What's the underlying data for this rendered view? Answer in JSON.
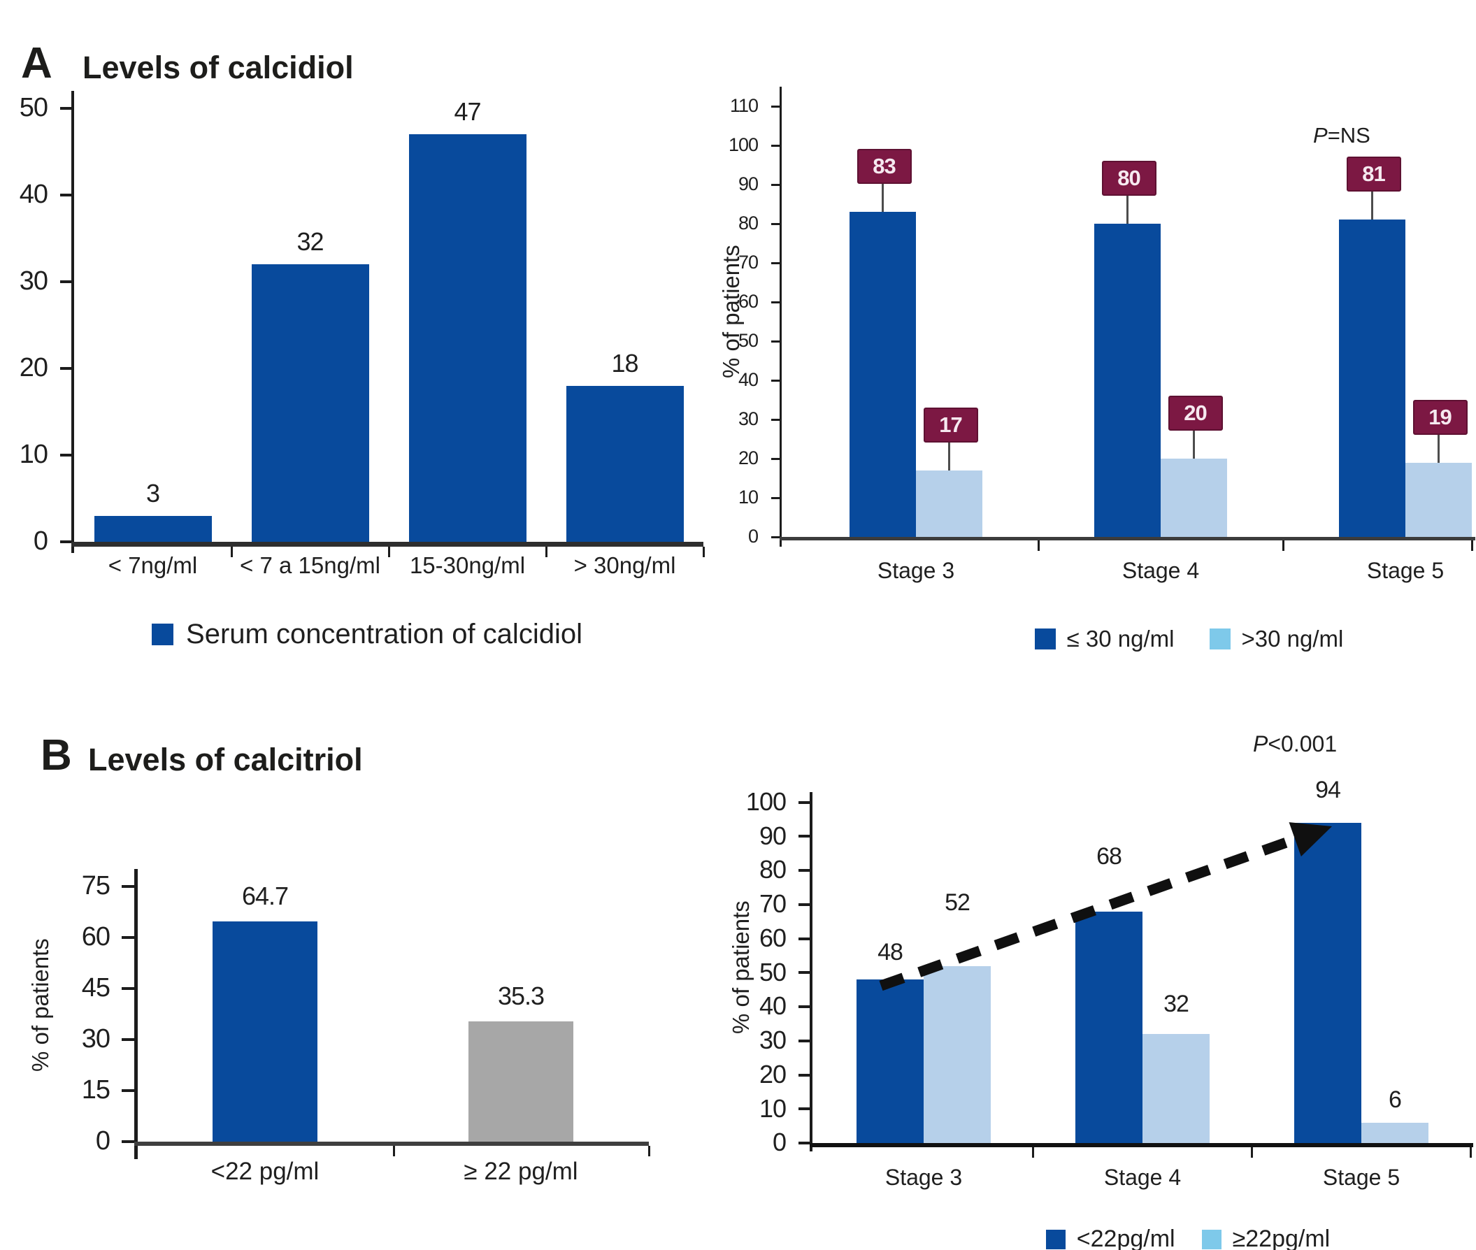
{
  "panels": {
    "a": {
      "letter": "A",
      "title": "Levels of calcidiol"
    },
    "b": {
      "letter": "B",
      "title": "Levels of calcitriol"
    }
  },
  "colors": {
    "dark_blue": "#084a9c",
    "light_blue": "#b6d0ea",
    "sky_blue": "#7ec9ea",
    "gray": "#a7a7a7",
    "maroon": "#7c1843",
    "maroon_border": "#5e1132",
    "maroon_text": "#f6e9f0",
    "axis": "#1c1c1c",
    "text": "#1f1f1f",
    "stem": "#4d4d4d",
    "arrow": "#101010"
  },
  "chart_data": [
    {
      "id": "calcidiol-distribution",
      "panel": "A",
      "type": "bar",
      "title": "Levels of calcidiol",
      "categories": [
        "< 7ng/ml",
        "< 7 a 15ng/ml",
        "15-30ng/ml",
        "> 30ng/ml"
      ],
      "values": [
        3,
        32,
        47,
        18
      ],
      "bar_labels": [
        "3",
        "32",
        "47",
        "18"
      ],
      "bar_color": "dark_blue",
      "xlabel": "",
      "ylabel": "",
      "ylim": [
        0,
        52
      ],
      "yticks": [
        0,
        10,
        20,
        30,
        40,
        50
      ],
      "grid": false,
      "legend_position": "bottom",
      "legend_items": [
        {
          "label": "Serum concentration of calcidiol",
          "color": "dark_blue"
        }
      ]
    },
    {
      "id": "calcidiol-by-ckd-stage",
      "panel": "A",
      "type": "grouped-bar",
      "categories": [
        "Stage 3",
        "Stage 4",
        "Stage 5"
      ],
      "series": [
        {
          "name": "≤ 30 ng/ml",
          "values": [
            83,
            80,
            81
          ],
          "color": "dark_blue"
        },
        {
          "name": ">30 ng/ml",
          "values": [
            17,
            20,
            19
          ],
          "color": "light_blue"
        }
      ],
      "value_labels": [
        [
          "83",
          "80",
          "81"
        ],
        [
          "17",
          "20",
          "19"
        ]
      ],
      "value_label_style": "maroon-box",
      "xlabel": "",
      "ylabel": "% of patients",
      "ylim": [
        0,
        115
      ],
      "yticks": [
        0,
        10,
        20,
        30,
        40,
        50,
        60,
        70,
        80,
        90,
        100,
        110
      ],
      "grid": false,
      "annotation": {
        "italic": "P",
        "text": "=NS"
      },
      "legend_position": "bottom",
      "legend_items": [
        {
          "label": "≤ 30 ng/ml",
          "color": "dark_blue"
        },
        {
          "label": ">30 ng/ml",
          "color": "sky_blue"
        }
      ]
    },
    {
      "id": "calcitriol-distribution",
      "panel": "B",
      "type": "bar",
      "title": "Levels of calcitriol",
      "categories": [
        "<22 pg/ml",
        "≥ 22 pg/ml"
      ],
      "values": [
        64.7,
        35.3
      ],
      "bar_labels": [
        "64.7",
        "35.3"
      ],
      "bar_colors": [
        "dark_blue",
        "gray"
      ],
      "xlabel": "",
      "ylabel": "% of patients",
      "ylim": [
        0,
        80
      ],
      "yticks": [
        0,
        15,
        30,
        45,
        60,
        75
      ],
      "grid": false,
      "legend_position": "none",
      "legend_items": []
    },
    {
      "id": "calcitriol-by-ckd-stage",
      "panel": "B",
      "type": "grouped-bar",
      "categories": [
        "Stage 3",
        "Stage 4",
        "Stage 5"
      ],
      "series": [
        {
          "name": "<22pg/ml",
          "values": [
            48,
            68,
            94
          ],
          "color": "dark_blue"
        },
        {
          "name": "≥22pg/ml",
          "values": [
            52,
            32,
            6
          ],
          "color": "light_blue"
        }
      ],
      "value_labels": [
        [
          "48",
          "68",
          "94"
        ],
        [
          "52",
          "32",
          "6"
        ]
      ],
      "value_label_style": "plain",
      "xlabel": "",
      "ylabel": "% of patients",
      "ylim": [
        0,
        103
      ],
      "yticks": [
        0,
        10,
        20,
        30,
        40,
        50,
        60,
        70,
        80,
        90,
        100
      ],
      "grid": false,
      "annotation": {
        "italic": "P",
        "text": "<0.001"
      },
      "trend_arrow": {
        "from_category": "Stage 3",
        "to_category": "Stage 5",
        "style": "dashed-black"
      },
      "legend_position": "bottom",
      "legend_items": [
        {
          "label": "<22pg/ml",
          "color": "dark_blue"
        },
        {
          "label": "≥22pg/ml",
          "color": "sky_blue"
        }
      ]
    }
  ]
}
